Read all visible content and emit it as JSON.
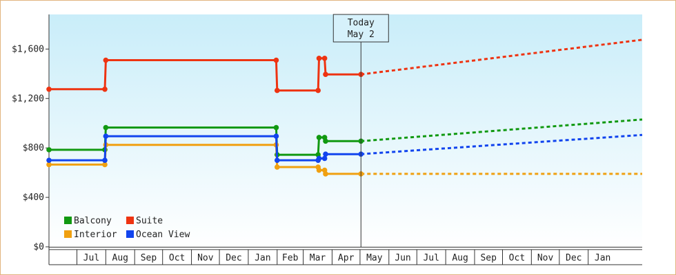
{
  "chart_data": {
    "type": "line",
    "title": "",
    "xlabel": "",
    "ylabel": "",
    "ylim": [
      0,
      1880
    ],
    "yticks": [
      0,
      400,
      800,
      1200,
      1600
    ],
    "ytick_labels": [
      "$0",
      "$400",
      "$800",
      "$1,200",
      "$1,600"
    ],
    "xlim": [
      "2024-06-01",
      "2025-02-28"
    ],
    "month_labels": [
      {
        "label": "Jul",
        "start": "2024-07-01",
        "end": "2024-08-01"
      },
      {
        "label": "Aug",
        "start": "2024-08-01",
        "end": "2024-09-01"
      },
      {
        "label": "Sep",
        "start": "2024-09-01",
        "end": "2024-10-01"
      },
      {
        "label": "Oct",
        "start": "2024-10-01",
        "end": "2024-11-01"
      },
      {
        "label": "Nov",
        "start": "2024-11-01",
        "end": "2024-12-01"
      },
      {
        "label": "Dec",
        "start": "2024-12-01",
        "end": "2025-01-01"
      },
      {
        "label": "Jan",
        "start": "2025-01-01",
        "end": "2025-02-01"
      },
      {
        "label": "Feb",
        "start": "2025-02-01",
        "end": "2025-03-01"
      },
      {
        "label": "Mar",
        "start": "2025-03-01",
        "end": "2025-04-01"
      },
      {
        "label": "Apr",
        "start": "2025-04-01",
        "end": "2025-05-01"
      },
      {
        "label": "May",
        "start": "2025-05-01",
        "end": "2025-06-01"
      },
      {
        "label": "Jun",
        "start": "2025-06-01",
        "end": "2025-07-01"
      },
      {
        "label": "Jul",
        "start": "2025-07-01",
        "end": "2025-08-01"
      },
      {
        "label": "Aug",
        "start": "2025-08-01",
        "end": "2025-09-01"
      },
      {
        "label": "Sep",
        "start": "2025-09-01",
        "end": "2025-10-01"
      },
      {
        "label": "Oct",
        "start": "2025-10-01",
        "end": "2025-11-01"
      },
      {
        "label": "Nov",
        "start": "2025-11-01",
        "end": "2025-12-01"
      },
      {
        "label": "Dec",
        "start": "2025-12-01",
        "end": "2026-01-01"
      },
      {
        "label": "Jan",
        "start": "2026-01-01",
        "end": "2026-02-01"
      }
    ],
    "x_axis_start": "2024-06-01",
    "x_axis_end": "2026-02-28",
    "today": {
      "line1": "Today",
      "line2": "May 2",
      "date": "2025-05-02"
    },
    "grid": false,
    "legend_position": "bottom-left",
    "series": [
      {
        "name": "Balcony",
        "color": "#119911",
        "history": [
          [
            "2024-06-01",
            785
          ],
          [
            "2024-07-31",
            785
          ],
          [
            "2024-08-01",
            965
          ],
          [
            "2025-01-31",
            965
          ],
          [
            "2025-02-01",
            745
          ],
          [
            "2025-03-17",
            745
          ],
          [
            "2025-03-18",
            885
          ],
          [
            "2025-03-24",
            885
          ],
          [
            "2025-03-25",
            855
          ],
          [
            "2025-05-02",
            855
          ]
        ],
        "forecast": [
          [
            "2025-05-02",
            855
          ],
          [
            "2026-02-28",
            1030
          ]
        ]
      },
      {
        "name": "Suite",
        "color": "#ee3311",
        "history": [
          [
            "2024-06-01",
            1275
          ],
          [
            "2024-07-31",
            1275
          ],
          [
            "2024-08-01",
            1510
          ],
          [
            "2025-01-31",
            1510
          ],
          [
            "2025-02-01",
            1265
          ],
          [
            "2025-03-17",
            1265
          ],
          [
            "2025-03-18",
            1525
          ],
          [
            "2025-03-24",
            1525
          ],
          [
            "2025-03-25",
            1395
          ],
          [
            "2025-05-02",
            1395
          ]
        ],
        "forecast": [
          [
            "2025-05-02",
            1395
          ],
          [
            "2026-02-28",
            1675
          ]
        ]
      },
      {
        "name": "Interior",
        "color": "#f0a010",
        "history": [
          [
            "2024-06-01",
            665
          ],
          [
            "2024-07-31",
            665
          ],
          [
            "2024-08-01",
            825
          ],
          [
            "2025-01-31",
            825
          ],
          [
            "2025-02-01",
            645
          ],
          [
            "2025-03-17",
            645
          ],
          [
            "2025-03-18",
            620
          ],
          [
            "2025-03-24",
            620
          ],
          [
            "2025-03-25",
            590
          ],
          [
            "2025-05-02",
            590
          ]
        ],
        "forecast": [
          [
            "2025-05-02",
            590
          ],
          [
            "2026-02-28",
            590
          ]
        ]
      },
      {
        "name": "Ocean View",
        "color": "#1144ee",
        "history": [
          [
            "2024-06-01",
            700
          ],
          [
            "2024-07-31",
            700
          ],
          [
            "2024-08-01",
            895
          ],
          [
            "2025-01-31",
            895
          ],
          [
            "2025-02-01",
            700
          ],
          [
            "2025-03-17",
            700
          ],
          [
            "2025-03-18",
            715
          ],
          [
            "2025-03-24",
            715
          ],
          [
            "2025-03-25",
            750
          ],
          [
            "2025-05-02",
            750
          ]
        ],
        "forecast": [
          [
            "2025-05-02",
            750
          ],
          [
            "2026-02-28",
            905
          ]
        ]
      }
    ],
    "legend_order": [
      "Balcony",
      "Suite",
      "Interior",
      "Ocean View"
    ]
  }
}
